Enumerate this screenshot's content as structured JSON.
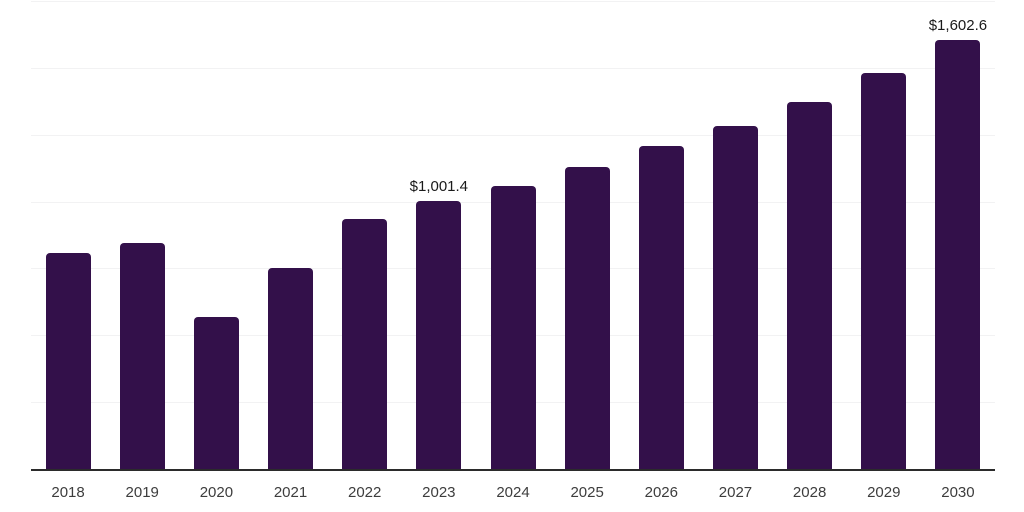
{
  "chart_data": {
    "type": "bar",
    "title": "",
    "xlabel": "",
    "ylabel": "",
    "categories": [
      "2018",
      "2019",
      "2020",
      "2021",
      "2022",
      "2023",
      "2024",
      "2025",
      "2026",
      "2027",
      "2028",
      "2029",
      "2030"
    ],
    "values": [
      806,
      844,
      569,
      753,
      934,
      1001.4,
      1058,
      1129,
      1208,
      1283,
      1373,
      1479,
      1602.6
    ],
    "data_labels": [
      "",
      "",
      "",
      "",
      "",
      "$1,001.4",
      "",
      "",
      "",
      "",
      "",
      "",
      "$1,602.6"
    ],
    "ylim": [
      0,
      1750
    ],
    "gridline_step": 250,
    "grid_on": true,
    "y_axis_labels_visible": false,
    "legend": "none",
    "colors": {
      "bar": "#33104A",
      "gridline": "#f2f2f3",
      "axis_line": "#2b2b2b",
      "tick_label": "#3d3d3d",
      "data_label": "#1a1a1a",
      "background": "#ffffff"
    }
  }
}
